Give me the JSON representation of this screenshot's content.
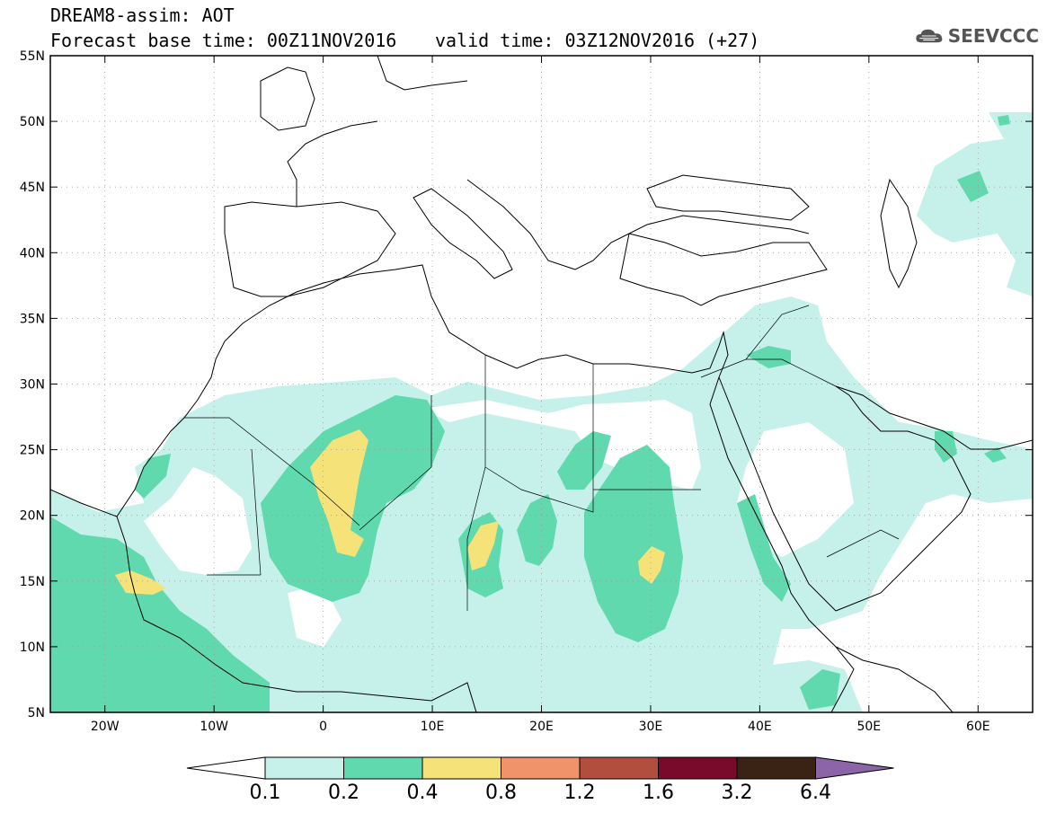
{
  "title": {
    "product": "DREAM8-assim: AOT",
    "base_time": "Forecast base time: 00Z11NOV2016",
    "valid_time": "valid time: 03Z12NOV2016 (+27)"
  },
  "logo": {
    "icon": "cloud-icon",
    "text": "SEEVCCC"
  },
  "map": {
    "lon_range": [
      -25,
      65
    ],
    "lat_range": [
      5,
      55
    ],
    "lat_ticks": [
      {
        "value": 55,
        "label": "55N"
      },
      {
        "value": 50,
        "label": "50N"
      },
      {
        "value": 45,
        "label": "45N"
      },
      {
        "value": 40,
        "label": "40N"
      },
      {
        "value": 35,
        "label": "35N"
      },
      {
        "value": 30,
        "label": "30N"
      },
      {
        "value": 25,
        "label": "25N"
      },
      {
        "value": 20,
        "label": "20N"
      },
      {
        "value": 15,
        "label": "15N"
      },
      {
        "value": 10,
        "label": "10N"
      },
      {
        "value": 5,
        "label": "5N"
      }
    ],
    "lon_ticks": [
      {
        "value": -20,
        "label": "20W"
      },
      {
        "value": -10,
        "label": "10W"
      },
      {
        "value": 0,
        "label": "0"
      },
      {
        "value": 10,
        "label": "10E"
      },
      {
        "value": 20,
        "label": "20E"
      },
      {
        "value": 30,
        "label": "30E"
      },
      {
        "value": 40,
        "label": "40E"
      },
      {
        "value": 50,
        "label": "50E"
      },
      {
        "value": 60,
        "label": "60E"
      }
    ],
    "grid": true
  },
  "colors": {
    "c1": "#c6f0ea",
    "c2": "#5fd9ad",
    "c3": "#f5e37a",
    "c4": "#f0926a",
    "c5": "#b24e3e",
    "c6": "#7a0a2c",
    "c7": "#3a2314",
    "c8": "#8c64a8",
    "coast": "#000000"
  },
  "colorbar": {
    "levels": [
      "0.1",
      "0.2",
      "0.4",
      "0.8",
      "1.2",
      "1.6",
      "3.2",
      "6.4"
    ],
    "bins": [
      "#ffffff",
      "#c6f0ea",
      "#5fd9ad",
      "#f5e37a",
      "#f0926a",
      "#b24e3e",
      "#7a0a2c",
      "#3a2314",
      "#8c64a8"
    ]
  }
}
